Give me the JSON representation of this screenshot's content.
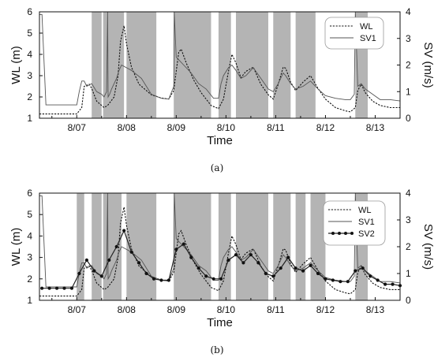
{
  "chart_data": [
    {
      "type": "line",
      "caption": "(a)",
      "xlabel": "Time",
      "ylabel": "WL (m)",
      "y2label": "SV (m/s)",
      "x_ticks": [
        "8/07",
        "8/08",
        "8/09",
        "8/10",
        "8/11",
        "8/12",
        "8/13"
      ],
      "xlim": [
        -0.75,
        6.5
      ],
      "ylim": [
        1,
        6
      ],
      "y2lim": [
        0,
        4
      ],
      "y_ticks": [
        1,
        2,
        3,
        4,
        5,
        6
      ],
      "y2_ticks": [
        0,
        1,
        2,
        3,
        4
      ],
      "legend_position": "top-right",
      "shaded_periods": [
        [
          0.3,
          0.5
        ],
        [
          0.53,
          0.95
        ],
        [
          1.0,
          1.6
        ],
        [
          1.95,
          2.7
        ],
        [
          2.85,
          3.1
        ],
        [
          3.2,
          3.85
        ],
        [
          3.95,
          4.3
        ],
        [
          4.4,
          4.8
        ],
        [
          5.6,
          5.85
        ]
      ],
      "series": [
        {
          "name": "WL",
          "axis": "left",
          "style": "dotted",
          "x": [
            -0.75,
            0.0,
            0.1,
            0.15,
            0.25,
            0.3,
            0.4,
            0.5,
            0.55,
            0.62,
            0.75,
            0.83,
            0.88,
            0.95,
            1.0,
            1.1,
            1.25,
            1.5,
            1.7,
            1.85,
            1.95,
            2.0,
            2.05,
            2.1,
            2.2,
            2.35,
            2.5,
            2.7,
            2.85,
            2.95,
            3.05,
            3.12,
            3.2,
            3.3,
            3.4,
            3.55,
            3.7,
            3.85,
            3.95,
            4.05,
            4.15,
            4.2,
            4.3,
            4.4,
            4.55,
            4.7,
            4.85,
            5.0,
            5.2,
            5.4,
            5.5,
            5.6,
            5.65,
            5.72,
            5.8,
            5.95,
            6.1,
            6.3,
            6.5
          ],
          "y": [
            1.2,
            1.2,
            1.5,
            2.5,
            2.6,
            2.4,
            1.8,
            1.6,
            1.5,
            1.6,
            2.0,
            3.0,
            4.6,
            5.35,
            4.5,
            3.4,
            2.6,
            2.1,
            1.95,
            1.9,
            2.3,
            3.2,
            4.1,
            4.25,
            3.6,
            2.8,
            2.2,
            1.6,
            1.45,
            1.9,
            3.2,
            4.0,
            3.6,
            2.9,
            3.2,
            3.4,
            2.6,
            2.1,
            1.9,
            2.6,
            3.4,
            3.35,
            2.7,
            2.3,
            2.7,
            3.0,
            2.4,
            1.9,
            1.5,
            1.35,
            1.3,
            1.5,
            2.3,
            2.6,
            2.2,
            1.8,
            1.6,
            1.5,
            1.5
          ]
        },
        {
          "name": "SV1",
          "axis": "right",
          "style": "solid",
          "x": [
            -0.75,
            -0.7,
            -0.62,
            -0.6,
            0.0,
            0.05,
            0.1,
            0.15,
            0.2,
            0.3,
            0.4,
            0.5,
            0.55,
            0.6,
            0.62,
            0.63,
            0.66,
            0.7,
            0.75,
            0.8,
            0.85,
            0.9,
            1.0,
            1.1,
            1.3,
            1.5,
            1.7,
            1.85,
            1.95,
            1.96,
            2.0,
            2.15,
            2.3,
            2.45,
            2.6,
            2.75,
            2.85,
            2.9,
            2.95,
            3.05,
            3.12,
            3.2,
            3.3,
            3.4,
            3.55,
            3.7,
            3.85,
            3.95,
            4.05,
            4.15,
            4.2,
            4.3,
            4.4,
            4.55,
            4.7,
            4.85,
            5.0,
            5.2,
            5.4,
            5.5,
            5.58,
            5.6,
            5.65,
            5.72,
            5.8,
            5.95,
            6.1,
            6.3,
            6.5
          ],
          "y": [
            3.9,
            3.9,
            0.5,
            0.5,
            0.5,
            1.0,
            1.4,
            1.4,
            1.2,
            1.3,
            1.0,
            0.9,
            0.8,
            1.0,
            4.0,
            0.8,
            0.9,
            1.1,
            1.3,
            1.5,
            1.8,
            2.0,
            1.9,
            1.8,
            1.5,
            0.9,
            0.75,
            0.72,
            1.2,
            4.0,
            2.3,
            2.0,
            1.7,
            1.3,
            1.1,
            0.75,
            0.75,
            1.3,
            1.6,
            1.9,
            2.0,
            1.8,
            1.5,
            1.6,
            1.9,
            1.5,
            1.1,
            1.0,
            1.3,
            1.7,
            1.6,
            1.3,
            1.1,
            1.2,
            1.4,
            1.1,
            0.85,
            0.75,
            0.7,
            0.7,
            0.9,
            4.0,
            1.2,
            1.3,
            1.1,
            0.9,
            0.7,
            0.7,
            0.65
          ]
        }
      ]
    },
    {
      "type": "line",
      "caption": "(b)",
      "xlabel": "Time",
      "ylabel": "WL (m)",
      "y2label": "SV (m/s)",
      "x_ticks": [
        "8/07",
        "8/08",
        "8/09",
        "8/10",
        "8/11",
        "8/12",
        "8/13"
      ],
      "xlim": [
        -0.75,
        6.5
      ],
      "ylim": [
        1,
        6
      ],
      "y2lim": [
        0,
        4
      ],
      "y_ticks": [
        1,
        2,
        3,
        4,
        5,
        6
      ],
      "y2_ticks": [
        0,
        1,
        2,
        3,
        4
      ],
      "legend_position": "top-right",
      "shaded_periods": [
        [
          0.0,
          0.15
        ],
        [
          0.3,
          0.5
        ],
        [
          0.53,
          0.9
        ],
        [
          1.0,
          1.6
        ],
        [
          1.95,
          2.7
        ],
        [
          2.85,
          3.1
        ],
        [
          3.2,
          3.85
        ],
        [
          3.95,
          4.3
        ],
        [
          4.4,
          4.6
        ],
        [
          4.7,
          5.0
        ],
        [
          5.6,
          5.85
        ]
      ],
      "series": [
        {
          "name": "WL",
          "axis": "left",
          "style": "dotted",
          "x": [
            -0.75,
            0.0,
            0.1,
            0.15,
            0.25,
            0.3,
            0.4,
            0.5,
            0.55,
            0.62,
            0.75,
            0.83,
            0.88,
            0.95,
            1.0,
            1.1,
            1.25,
            1.5,
            1.7,
            1.85,
            1.95,
            2.0,
            2.05,
            2.1,
            2.2,
            2.35,
            2.5,
            2.7,
            2.85,
            2.95,
            3.05,
            3.12,
            3.2,
            3.3,
            3.4,
            3.55,
            3.7,
            3.85,
            3.95,
            4.05,
            4.15,
            4.2,
            4.3,
            4.4,
            4.55,
            4.7,
            4.85,
            5.0,
            5.2,
            5.4,
            5.5,
            5.6,
            5.65,
            5.72,
            5.8,
            5.95,
            6.1,
            6.3,
            6.5
          ],
          "y": [
            1.2,
            1.2,
            1.5,
            2.5,
            2.6,
            2.4,
            1.8,
            1.6,
            1.5,
            1.6,
            2.0,
            3.0,
            4.6,
            5.35,
            4.5,
            3.4,
            2.6,
            2.1,
            1.95,
            1.9,
            2.3,
            3.2,
            4.1,
            4.25,
            3.6,
            2.8,
            2.2,
            1.6,
            1.45,
            1.9,
            3.2,
            4.0,
            3.6,
            2.9,
            3.2,
            3.4,
            2.6,
            2.1,
            1.9,
            2.6,
            3.4,
            3.35,
            2.7,
            2.3,
            2.7,
            3.0,
            2.4,
            1.9,
            1.5,
            1.35,
            1.3,
            1.5,
            2.3,
            2.6,
            2.2,
            1.8,
            1.6,
            1.5,
            1.5
          ]
        },
        {
          "name": "SV1",
          "axis": "right",
          "style": "solid",
          "x": [
            -0.75,
            -0.7,
            -0.62,
            -0.6,
            0.0,
            0.05,
            0.1,
            0.15,
            0.2,
            0.3,
            0.4,
            0.5,
            0.55,
            0.6,
            0.62,
            0.63,
            0.66,
            0.7,
            0.75,
            0.8,
            0.85,
            0.9,
            1.0,
            1.1,
            1.3,
            1.5,
            1.7,
            1.85,
            1.95,
            1.96,
            2.0,
            2.15,
            2.3,
            2.45,
            2.6,
            2.75,
            2.85,
            2.9,
            2.95,
            3.05,
            3.12,
            3.2,
            3.3,
            3.4,
            3.55,
            3.7,
            3.85,
            3.95,
            4.05,
            4.15,
            4.2,
            4.3,
            4.4,
            4.55,
            4.7,
            4.85,
            5.0,
            5.2,
            5.4,
            5.5,
            5.58,
            5.6,
            5.65,
            5.72,
            5.8,
            5.95,
            6.1,
            6.3,
            6.5
          ],
          "y": [
            3.9,
            3.9,
            0.5,
            0.5,
            0.5,
            1.0,
            1.4,
            1.4,
            1.2,
            1.3,
            1.0,
            0.9,
            0.8,
            1.0,
            4.0,
            0.8,
            0.9,
            1.1,
            1.3,
            1.5,
            1.8,
            2.0,
            1.9,
            1.8,
            1.5,
            0.9,
            0.75,
            0.72,
            1.2,
            4.0,
            2.3,
            2.0,
            1.7,
            1.3,
            1.1,
            0.75,
            0.75,
            1.3,
            1.6,
            1.9,
            2.0,
            1.8,
            1.5,
            1.6,
            1.9,
            1.5,
            1.1,
            1.0,
            1.3,
            1.7,
            1.6,
            1.3,
            1.1,
            1.2,
            1.4,
            1.1,
            0.85,
            0.75,
            0.7,
            0.7,
            0.9,
            4.0,
            1.2,
            1.3,
            1.1,
            0.9,
            0.7,
            0.7,
            0.65
          ]
        },
        {
          "name": "SV2",
          "axis": "right",
          "style": "solid-markers",
          "x": [
            -0.7,
            -0.55,
            -0.4,
            -0.25,
            -0.1,
            0.05,
            0.2,
            0.35,
            0.5,
            0.65,
            0.8,
            0.95,
            1.1,
            1.25,
            1.4,
            1.55,
            1.7,
            1.85,
            2.0,
            2.15,
            2.3,
            2.45,
            2.6,
            2.75,
            2.9,
            3.05,
            3.2,
            3.35,
            3.5,
            3.65,
            3.8,
            3.95,
            4.1,
            4.25,
            4.4,
            4.55,
            4.7,
            4.85,
            5.0,
            5.15,
            5.3,
            5.45,
            5.6,
            5.75,
            5.9,
            6.05,
            6.2,
            6.35,
            6.5
          ],
          "y": [
            0.45,
            0.45,
            0.45,
            0.45,
            0.45,
            1.0,
            1.5,
            1.1,
            0.9,
            1.5,
            2.0,
            2.6,
            1.8,
            1.4,
            1.0,
            0.8,
            0.75,
            0.75,
            1.9,
            2.1,
            1.6,
            1.2,
            0.9,
            0.8,
            0.8,
            1.5,
            1.7,
            1.4,
            1.7,
            1.4,
            1.0,
            0.9,
            1.2,
            1.6,
            1.2,
            1.1,
            1.3,
            1.0,
            0.8,
            0.75,
            0.7,
            0.7,
            1.1,
            1.2,
            0.9,
            0.75,
            0.6,
            0.6,
            0.55
          ]
        }
      ]
    }
  ]
}
